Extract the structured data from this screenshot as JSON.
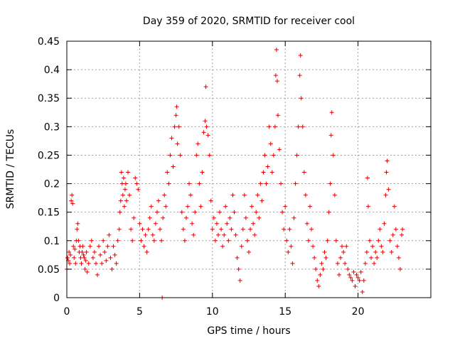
{
  "chart_data": {
    "type": "scatter",
    "title": "Day 359 of 2020, SRMTID for receiver cool",
    "xlabel": "GPS time / hours",
    "ylabel": "SRMTID / TECUs",
    "xlim": [
      0,
      25
    ],
    "ylim": [
      0,
      0.45
    ],
    "x_ticks": [
      0,
      5,
      10,
      15,
      20
    ],
    "y_ticks": [
      0,
      0.05,
      0.1,
      0.15,
      0.2,
      0.25,
      0.3,
      0.35,
      0.4,
      0.45
    ],
    "x_tick_labels": [
      "0",
      "5",
      "10",
      "15",
      "20"
    ],
    "y_tick_labels": [
      "0",
      "0.05",
      "0.1",
      "0.15",
      "0.2",
      "0.25",
      "0.3",
      "0.35",
      "0.4",
      "0.45"
    ],
    "grid": true,
    "marker": "+",
    "series": [
      {
        "name": "SRMTID",
        "color": "#e00000",
        "points": [
          [
            0.0,
            0.05
          ],
          [
            0.05,
            0.07
          ],
          [
            0.1,
            0.065
          ],
          [
            0.15,
            0.08
          ],
          [
            0.2,
            0.06
          ],
          [
            0.25,
            0.075
          ],
          [
            0.3,
            0.17
          ],
          [
            0.35,
            0.18
          ],
          [
            0.4,
            0.165
          ],
          [
            0.45,
            0.09
          ],
          [
            0.5,
            0.07
          ],
          [
            0.55,
            0.085
          ],
          [
            0.6,
            0.06
          ],
          [
            0.65,
            0.1
          ],
          [
            0.7,
            0.12
          ],
          [
            0.75,
            0.13
          ],
          [
            0.8,
            0.1
          ],
          [
            0.85,
            0.08
          ],
          [
            0.9,
            0.09
          ],
          [
            0.95,
            0.07
          ],
          [
            1.0,
            0.06
          ],
          [
            1.05,
            0.08
          ],
          [
            1.1,
            0.09
          ],
          [
            1.15,
            0.075
          ],
          [
            1.2,
            0.07
          ],
          [
            1.25,
            0.05
          ],
          [
            1.3,
            0.065
          ],
          [
            1.35,
            0.08
          ],
          [
            1.4,
            0.045
          ],
          [
            1.5,
            0.06
          ],
          [
            1.6,
            0.09
          ],
          [
            1.7,
            0.1
          ],
          [
            1.8,
            0.07
          ],
          [
            1.9,
            0.08
          ],
          [
            2.0,
            0.06
          ],
          [
            2.1,
            0.04
          ],
          [
            2.2,
            0.09
          ],
          [
            2.3,
            0.075
          ],
          [
            2.4,
            0.06
          ],
          [
            2.5,
            0.1
          ],
          [
            2.6,
            0.08
          ],
          [
            2.7,
            0.065
          ],
          [
            2.8,
            0.09
          ],
          [
            2.9,
            0.11
          ],
          [
            3.0,
            0.07
          ],
          [
            3.1,
            0.05
          ],
          [
            3.2,
            0.09
          ],
          [
            3.3,
            0.075
          ],
          [
            3.4,
            0.06
          ],
          [
            3.5,
            0.1
          ],
          [
            3.6,
            0.12
          ],
          [
            3.65,
            0.15
          ],
          [
            3.7,
            0.17
          ],
          [
            3.75,
            0.22
          ],
          [
            3.8,
            0.2
          ],
          [
            3.85,
            0.18
          ],
          [
            3.9,
            0.21
          ],
          [
            3.95,
            0.16
          ],
          [
            4.0,
            0.19
          ],
          [
            4.05,
            0.2
          ],
          [
            4.1,
            0.17
          ],
          [
            4.2,
            0.22
          ],
          [
            4.3,
            0.18
          ],
          [
            4.4,
            0.12
          ],
          [
            4.5,
            0.1
          ],
          [
            4.6,
            0.14
          ],
          [
            4.7,
            0.21
          ],
          [
            4.8,
            0.2
          ],
          [
            4.9,
            0.19
          ],
          [
            5.0,
            0.13
          ],
          [
            5.1,
            0.1
          ],
          [
            5.2,
            0.12
          ],
          [
            5.3,
            0.09
          ],
          [
            5.4,
            0.11
          ],
          [
            5.5,
            0.08
          ],
          [
            5.6,
            0.12
          ],
          [
            5.7,
            0.14
          ],
          [
            5.8,
            0.16
          ],
          [
            5.9,
            0.11
          ],
          [
            6.0,
            0.1
          ],
          [
            6.1,
            0.13
          ],
          [
            6.2,
            0.15
          ],
          [
            6.3,
            0.17
          ],
          [
            6.4,
            0.12
          ],
          [
            6.5,
            0.1
          ],
          [
            6.55,
            0.0
          ],
          [
            6.6,
            0.14
          ],
          [
            6.7,
            0.18
          ],
          [
            6.8,
            0.16
          ],
          [
            6.9,
            0.22
          ],
          [
            7.0,
            0.2
          ],
          [
            7.1,
            0.25
          ],
          [
            7.2,
            0.28
          ],
          [
            7.3,
            0.23
          ],
          [
            7.4,
            0.3
          ],
          [
            7.5,
            0.32
          ],
          [
            7.55,
            0.335
          ],
          [
            7.6,
            0.27
          ],
          [
            7.7,
            0.3
          ],
          [
            7.8,
            0.25
          ],
          [
            7.9,
            0.15
          ],
          [
            8.0,
            0.12
          ],
          [
            8.1,
            0.1
          ],
          [
            8.2,
            0.14
          ],
          [
            8.3,
            0.16
          ],
          [
            8.4,
            0.2
          ],
          [
            8.5,
            0.18
          ],
          [
            8.6,
            0.13
          ],
          [
            8.7,
            0.11
          ],
          [
            8.8,
            0.15
          ],
          [
            8.9,
            0.25
          ],
          [
            9.0,
            0.27
          ],
          [
            9.1,
            0.2
          ],
          [
            9.2,
            0.16
          ],
          [
            9.3,
            0.22
          ],
          [
            9.4,
            0.29
          ],
          [
            9.5,
            0.31
          ],
          [
            9.55,
            0.37
          ],
          [
            9.6,
            0.3
          ],
          [
            9.7,
            0.285
          ],
          [
            9.8,
            0.25
          ],
          [
            9.9,
            0.17
          ],
          [
            10.0,
            0.12
          ],
          [
            10.1,
            0.14
          ],
          [
            10.2,
            0.1
          ],
          [
            10.3,
            0.13
          ],
          [
            10.4,
            0.11
          ],
          [
            10.5,
            0.15
          ],
          [
            10.6,
            0.12
          ],
          [
            10.7,
            0.09
          ],
          [
            10.8,
            0.11
          ],
          [
            10.9,
            0.16
          ],
          [
            11.0,
            0.13
          ],
          [
            11.1,
            0.1
          ],
          [
            11.2,
            0.14
          ],
          [
            11.3,
            0.12
          ],
          [
            11.4,
            0.18
          ],
          [
            11.5,
            0.15
          ],
          [
            11.6,
            0.11
          ],
          [
            11.7,
            0.07
          ],
          [
            11.8,
            0.05
          ],
          [
            11.9,
            0.03
          ],
          [
            12.0,
            0.09
          ],
          [
            12.1,
            0.12
          ],
          [
            12.2,
            0.18
          ],
          [
            12.3,
            0.14
          ],
          [
            12.4,
            0.1
          ],
          [
            12.5,
            0.08
          ],
          [
            12.6,
            0.12
          ],
          [
            12.7,
            0.16
          ],
          [
            12.8,
            0.13
          ],
          [
            12.9,
            0.11
          ],
          [
            13.0,
            0.15
          ],
          [
            13.1,
            0.18
          ],
          [
            13.2,
            0.14
          ],
          [
            13.3,
            0.2
          ],
          [
            13.4,
            0.17
          ],
          [
            13.5,
            0.22
          ],
          [
            13.6,
            0.25
          ],
          [
            13.7,
            0.2
          ],
          [
            13.8,
            0.23
          ],
          [
            13.9,
            0.3
          ],
          [
            14.0,
            0.27
          ],
          [
            14.1,
            0.22
          ],
          [
            14.2,
            0.25
          ],
          [
            14.3,
            0.3
          ],
          [
            14.35,
            0.39
          ],
          [
            14.4,
            0.435
          ],
          [
            14.45,
            0.38
          ],
          [
            14.5,
            0.32
          ],
          [
            14.6,
            0.26
          ],
          [
            14.7,
            0.2
          ],
          [
            14.8,
            0.15
          ],
          [
            14.9,
            0.12
          ],
          [
            15.0,
            0.16
          ],
          [
            15.1,
            0.1
          ],
          [
            15.2,
            0.08
          ],
          [
            15.3,
            0.12
          ],
          [
            15.4,
            0.09
          ],
          [
            15.5,
            0.06
          ],
          [
            15.6,
            0.14
          ],
          [
            15.7,
            0.2
          ],
          [
            15.8,
            0.25
          ],
          [
            15.9,
            0.3
          ],
          [
            16.0,
            0.39
          ],
          [
            16.05,
            0.425
          ],
          [
            16.1,
            0.35
          ],
          [
            16.2,
            0.3
          ],
          [
            16.3,
            0.22
          ],
          [
            16.4,
            0.18
          ],
          [
            16.5,
            0.13
          ],
          [
            16.6,
            0.1
          ],
          [
            16.7,
            0.16
          ],
          [
            16.8,
            0.12
          ],
          [
            16.9,
            0.09
          ],
          [
            17.0,
            0.07
          ],
          [
            17.1,
            0.05
          ],
          [
            17.2,
            0.03
          ],
          [
            17.3,
            0.02
          ],
          [
            17.4,
            0.04
          ],
          [
            17.5,
            0.06
          ],
          [
            17.6,
            0.05
          ],
          [
            17.7,
            0.08
          ],
          [
            17.8,
            0.07
          ],
          [
            17.9,
            0.1
          ],
          [
            18.0,
            0.15
          ],
          [
            18.1,
            0.2
          ],
          [
            18.15,
            0.285
          ],
          [
            18.2,
            0.325
          ],
          [
            18.3,
            0.25
          ],
          [
            18.4,
            0.18
          ],
          [
            18.5,
            0.1
          ],
          [
            18.6,
            0.06
          ],
          [
            18.7,
            0.04
          ],
          [
            18.8,
            0.07
          ],
          [
            18.9,
            0.09
          ],
          [
            19.0,
            0.08
          ],
          [
            19.1,
            0.06
          ],
          [
            19.2,
            0.09
          ],
          [
            19.3,
            0.05
          ],
          [
            19.4,
            0.04
          ],
          [
            19.5,
            0.035
          ],
          [
            19.6,
            0.03
          ],
          [
            19.7,
            0.045
          ],
          [
            19.8,
            0.02
          ],
          [
            19.9,
            0.04
          ],
          [
            20.0,
            0.035
          ],
          [
            20.1,
            0.03
          ],
          [
            20.2,
            0.045
          ],
          [
            20.3,
            0.01
          ],
          [
            20.4,
            0.03
          ],
          [
            20.5,
            0.06
          ],
          [
            20.6,
            0.08
          ],
          [
            20.65,
            0.21
          ],
          [
            20.7,
            0.16
          ],
          [
            20.8,
            0.1
          ],
          [
            20.9,
            0.07
          ],
          [
            21.0,
            0.09
          ],
          [
            21.1,
            0.06
          ],
          [
            21.2,
            0.08
          ],
          [
            21.3,
            0.07
          ],
          [
            21.4,
            0.1
          ],
          [
            21.5,
            0.12
          ],
          [
            21.6,
            0.09
          ],
          [
            21.7,
            0.08
          ],
          [
            21.8,
            0.13
          ],
          [
            21.9,
            0.18
          ],
          [
            21.95,
            0.22
          ],
          [
            22.0,
            0.24
          ],
          [
            22.1,
            0.19
          ],
          [
            22.2,
            0.1
          ],
          [
            22.3,
            0.08
          ],
          [
            22.4,
            0.11
          ],
          [
            22.5,
            0.16
          ],
          [
            22.6,
            0.12
          ],
          [
            22.7,
            0.09
          ],
          [
            22.8,
            0.07
          ],
          [
            22.9,
            0.05
          ],
          [
            23.0,
            0.11
          ],
          [
            23.05,
            0.12
          ]
        ]
      }
    ]
  }
}
